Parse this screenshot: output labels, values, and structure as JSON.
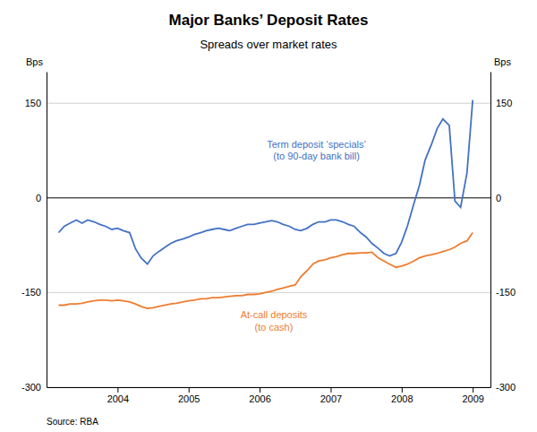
{
  "chart_data": {
    "type": "line",
    "title": "Major Banks’ Deposit Rates",
    "subtitle": "Spreads over market rates",
    "ylabel": "Bps",
    "y2label": "Bps",
    "source": "Source: RBA",
    "x": [
      2003.17,
      2003.25,
      2003.33,
      2003.42,
      2003.5,
      2003.58,
      2003.67,
      2003.75,
      2003.83,
      2003.92,
      2004.0,
      2004.08,
      2004.17,
      2004.25,
      2004.33,
      2004.42,
      2004.5,
      2004.58,
      2004.67,
      2004.75,
      2004.83,
      2004.92,
      2005.0,
      2005.08,
      2005.17,
      2005.25,
      2005.33,
      2005.42,
      2005.5,
      2005.58,
      2005.67,
      2005.75,
      2005.83,
      2005.92,
      2006.0,
      2006.08,
      2006.17,
      2006.25,
      2006.33,
      2006.42,
      2006.5,
      2006.58,
      2006.67,
      2006.75,
      2006.83,
      2006.92,
      2007.0,
      2007.08,
      2007.17,
      2007.25,
      2007.33,
      2007.42,
      2007.5,
      2007.58,
      2007.67,
      2007.75,
      2007.83,
      2007.92,
      2008.0,
      2008.08,
      2008.17,
      2008.25,
      2008.33,
      2008.42,
      2008.5,
      2008.58,
      2008.67,
      2008.75,
      2008.83,
      2008.92,
      2009.0
    ],
    "series": [
      {
        "color": "#4472C4",
        "values": [
          -55,
          -45,
          -40,
          -35,
          -40,
          -35,
          -38,
          -42,
          -45,
          -50,
          -48,
          -52,
          -55,
          -80,
          -95,
          -105,
          -92,
          -85,
          -78,
          -72,
          -68,
          -65,
          -62,
          -58,
          -55,
          -52,
          -50,
          -48,
          -50,
          -52,
          -48,
          -45,
          -42,
          -42,
          -40,
          -38,
          -36,
          -38,
          -42,
          -45,
          -50,
          -52,
          -48,
          -42,
          -38,
          -38,
          -35,
          -35,
          -38,
          -42,
          -45,
          -55,
          -62,
          -72,
          -80,
          -88,
          -92,
          -88,
          -70,
          -45,
          -10,
          20,
          60,
          85,
          110,
          125,
          115,
          -5,
          -15,
          40,
          155
        ]
      },
      {
        "color": "#ED7D31",
        "values": [
          -170,
          -170,
          -168,
          -168,
          -167,
          -165,
          -163,
          -162,
          -162,
          -163,
          -162,
          -163,
          -165,
          -168,
          -172,
          -175,
          -174,
          -172,
          -170,
          -168,
          -167,
          -165,
          -163,
          -162,
          -160,
          -160,
          -158,
          -158,
          -157,
          -156,
          -155,
          -155,
          -153,
          -153,
          -152,
          -150,
          -148,
          -145,
          -143,
          -140,
          -138,
          -125,
          -115,
          -105,
          -100,
          -98,
          -95,
          -93,
          -90,
          -88,
          -88,
          -87,
          -87,
          -86,
          -95,
          -100,
          -105,
          -110,
          -108,
          -105,
          -100,
          -95,
          -92,
          -90,
          -88,
          -85,
          -82,
          -78,
          -72,
          -68,
          -55
        ]
      }
    ],
    "annotations": [
      {
        "text": [
          "Term deposit ‘specials’",
          "(to 90-day bank bill)"
        ],
        "x": 2006.8,
        "y": 75,
        "color": "#4472C4"
      },
      {
        "text": [
          "At-call deposits",
          "(to cash)"
        ],
        "x": 2006.2,
        "y": -195,
        "color": "#ED7D31"
      }
    ],
    "xlim": [
      2003,
      2009.25
    ],
    "xticks": [
      2004,
      2005,
      2006,
      2007,
      2008,
      2009
    ],
    "ylim": [
      -300,
      200
    ],
    "yticks": [
      -300,
      -150,
      0,
      150
    ],
    "y2lim": [
      -300,
      200
    ],
    "y2ticks": [
      -300,
      -150,
      0,
      150
    ],
    "grid": true
  }
}
